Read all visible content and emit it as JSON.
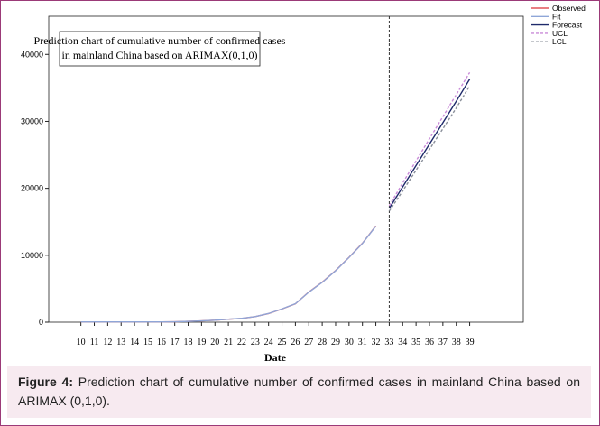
{
  "chart_data": {
    "type": "line",
    "title_lines": [
      "Prediction chart of cumulative number of confirmed cases",
      "in mainland China based on ARIMAX(0,1,0)"
    ],
    "x_label": "Date",
    "x": [
      10,
      11,
      12,
      13,
      14,
      15,
      16,
      17,
      18,
      19,
      20,
      21,
      22,
      23,
      24,
      25,
      26,
      27,
      28,
      29,
      30,
      31,
      32,
      33,
      34,
      35,
      36,
      37,
      38,
      39
    ],
    "xlim": [
      7.6,
      43
    ],
    "ylim": [
      0,
      45700
    ],
    "yticks": [
      0,
      10000,
      20000,
      30000,
      40000
    ],
    "forecast_start": 33,
    "series": [
      {
        "name": "Observed",
        "color": "#e0555a",
        "dash": false,
        "values": [
          41,
          41,
          41,
          41,
          41,
          41,
          45,
          62,
          121,
          198,
          291,
          440,
          571,
          830,
          1287,
          1975,
          2744,
          4515,
          5974,
          7711,
          9692,
          11791,
          14380,
          null,
          null,
          null,
          null,
          null,
          null,
          null
        ]
      },
      {
        "name": "Fit",
        "color": "#8fa6d8",
        "dash": false,
        "values": [
          41,
          41,
          41,
          41,
          41,
          41,
          44,
          60,
          118,
          200,
          295,
          445,
          580,
          840,
          1300,
          1990,
          2760,
          4480,
          5950,
          7690,
          9680,
          11770,
          14350,
          null,
          null,
          null,
          null,
          null,
          null,
          null
        ]
      },
      {
        "name": "Forecast",
        "color": "#1f2a6b",
        "dash": false,
        "values": [
          null,
          null,
          null,
          null,
          null,
          null,
          null,
          null,
          null,
          null,
          null,
          null,
          null,
          null,
          null,
          null,
          null,
          null,
          null,
          null,
          null,
          null,
          null,
          17000,
          20200,
          23400,
          26600,
          29800,
          33000,
          36300
        ]
      },
      {
        "name": "UCL",
        "color": "#c98ad8",
        "dash": true,
        "values": [
          null,
          null,
          null,
          null,
          null,
          null,
          null,
          null,
          null,
          null,
          null,
          null,
          null,
          null,
          null,
          null,
          null,
          null,
          null,
          null,
          null,
          null,
          null,
          17400,
          20800,
          24100,
          27400,
          30700,
          34000,
          37300
        ]
      },
      {
        "name": "LCL",
        "color": "#8a8f9a",
        "dash": true,
        "values": [
          null,
          null,
          null,
          null,
          null,
          null,
          null,
          null,
          null,
          null,
          null,
          null,
          null,
          null,
          null,
          null,
          null,
          null,
          null,
          null,
          null,
          null,
          null,
          16600,
          19600,
          22700,
          25800,
          28900,
          32000,
          35300
        ]
      }
    ]
  },
  "caption": {
    "label": "Figure 4:",
    "text": "Prediction chart of cumulative number of confirmed cases in mainland China based on ARIMAX (0,1,0)."
  }
}
